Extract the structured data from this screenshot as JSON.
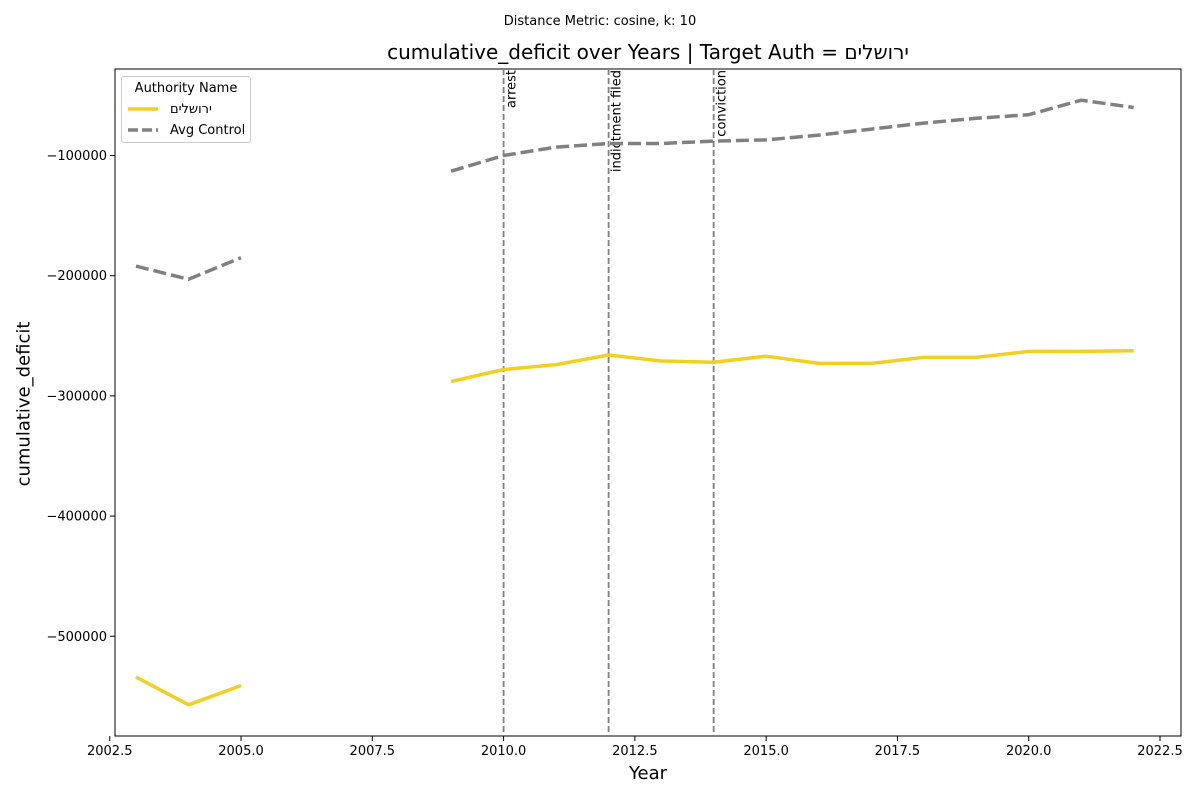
{
  "figure": {
    "suptitle": "Distance Metric: cosine, k: 10"
  },
  "chart_data": {
    "type": "line",
    "title": "cumulative_deficit over Years | Target Auth = ירושלים",
    "xlabel": "Year",
    "ylabel": "cumulative_deficit",
    "xlim": [
      2002.6,
      2022.9
    ],
    "ylim": [
      -583000,
      -28000
    ],
    "xticks": [
      2002.5,
      2005.0,
      2007.5,
      2010.0,
      2012.5,
      2015.0,
      2017.5,
      2020.0,
      2022.5
    ],
    "xtick_labels": [
      "2002.5",
      "2005.0",
      "2007.5",
      "2010.0",
      "2012.5",
      "2015.0",
      "2017.5",
      "2020.0",
      "2022.5"
    ],
    "yticks": [
      -500000,
      -400000,
      -300000,
      -200000,
      -100000
    ],
    "ytick_labels": [
      "−500000",
      "−400000",
      "−300000",
      "−200000",
      "−100000"
    ],
    "grid": false,
    "legend": {
      "title": "Authority Name",
      "placement": "top-left"
    },
    "series": [
      {
        "name": "ירושלים",
        "color": "#f0d020",
        "style": "solid",
        "segments": [
          {
            "x": [
              2003,
              2004,
              2005
            ],
            "y": [
              -534000,
              -557000,
              -541000
            ]
          },
          {
            "x": [
              2009,
              2010,
              2011,
              2012,
              2013,
              2014,
              2015,
              2016,
              2017,
              2018,
              2019,
              2020,
              2021,
              2022
            ],
            "y": [
              -288000,
              -278000,
              -274000,
              -266000,
              -271000,
              -272000,
              -267000,
              -273000,
              -273000,
              -268000,
              -268000,
              -263000,
              -263000,
              -262500
            ]
          }
        ]
      },
      {
        "name": "Avg Control",
        "color": "#808080",
        "style": "dashed",
        "segments": [
          {
            "x": [
              2003,
              2004,
              2005
            ],
            "y": [
              -192000,
              -203000,
              -185000
            ]
          },
          {
            "x": [
              2009,
              2010,
              2011,
              2012,
              2013,
              2014,
              2015,
              2016,
              2017,
              2018,
              2019,
              2020,
              2021,
              2022
            ],
            "y": [
              -113000,
              -100000,
              -93000,
              -90000,
              -90000,
              -88000,
              -87000,
              -83000,
              -78000,
              -73000,
              -69000,
              -66000,
              -54000,
              -60000
            ]
          }
        ]
      }
    ],
    "events": [
      {
        "x": 2010,
        "label": "arrest"
      },
      {
        "x": 2012,
        "label": "indictment filed"
      },
      {
        "x": 2014,
        "label": "conviction"
      }
    ]
  }
}
